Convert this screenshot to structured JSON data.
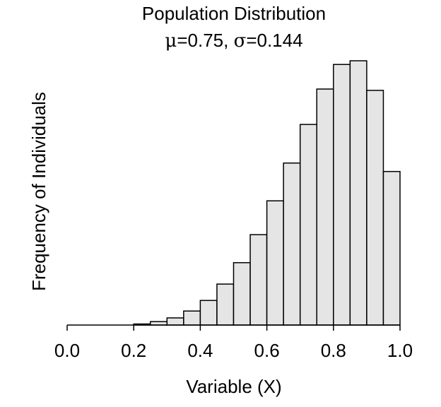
{
  "chart_data": {
    "type": "bar",
    "title": "Population Distribution",
    "subtitle": {
      "mu_symbol": "μ",
      "mu_text": "=0.75, ",
      "sigma_symbol": "σ",
      "sigma_text": "=0.144"
    },
    "xlabel": "Variable (X)",
    "ylabel": "Frequency of Individuals",
    "xlim": [
      0,
      1
    ],
    "ylim": [
      0,
      100
    ],
    "x_ticks": [
      "0.0",
      "0.2",
      "0.4",
      "0.6",
      "0.8",
      "1.0"
    ],
    "x_tick_values": [
      0.0,
      0.2,
      0.4,
      0.6,
      0.8,
      1.0
    ],
    "bin_width": 0.05,
    "bins": [
      {
        "x0": 0.0,
        "x1": 0.05,
        "value": 0
      },
      {
        "x0": 0.05,
        "x1": 0.1,
        "value": 0
      },
      {
        "x0": 0.1,
        "x1": 0.15,
        "value": 0
      },
      {
        "x0": 0.15,
        "x1": 0.2,
        "value": 0
      },
      {
        "x0": 0.2,
        "x1": 0.25,
        "value": 0.4
      },
      {
        "x0": 0.25,
        "x1": 0.3,
        "value": 1.3
      },
      {
        "x0": 0.3,
        "x1": 0.35,
        "value": 2.7
      },
      {
        "x0": 0.35,
        "x1": 0.4,
        "value": 5.3
      },
      {
        "x0": 0.4,
        "x1": 0.45,
        "value": 9.3
      },
      {
        "x0": 0.45,
        "x1": 0.5,
        "value": 15.5
      },
      {
        "x0": 0.5,
        "x1": 0.55,
        "value": 23.6
      },
      {
        "x0": 0.55,
        "x1": 0.6,
        "value": 34.2
      },
      {
        "x0": 0.6,
        "x1": 0.65,
        "value": 47.0
      },
      {
        "x0": 0.65,
        "x1": 0.7,
        "value": 61.3
      },
      {
        "x0": 0.7,
        "x1": 0.75,
        "value": 75.9
      },
      {
        "x0": 0.75,
        "x1": 0.8,
        "value": 89.3
      },
      {
        "x0": 0.8,
        "x1": 0.85,
        "value": 98.6
      },
      {
        "x0": 0.85,
        "x1": 0.9,
        "value": 100.0
      },
      {
        "x0": 0.9,
        "x1": 0.95,
        "value": 88.8
      },
      {
        "x0": 0.95,
        "x1": 1.0,
        "value": 58.1
      }
    ],
    "grid": false,
    "colors": {
      "bar_fill": "#e5e5e5",
      "bar_stroke": "#000000",
      "axis": "#000000",
      "background": "#ffffff"
    }
  }
}
